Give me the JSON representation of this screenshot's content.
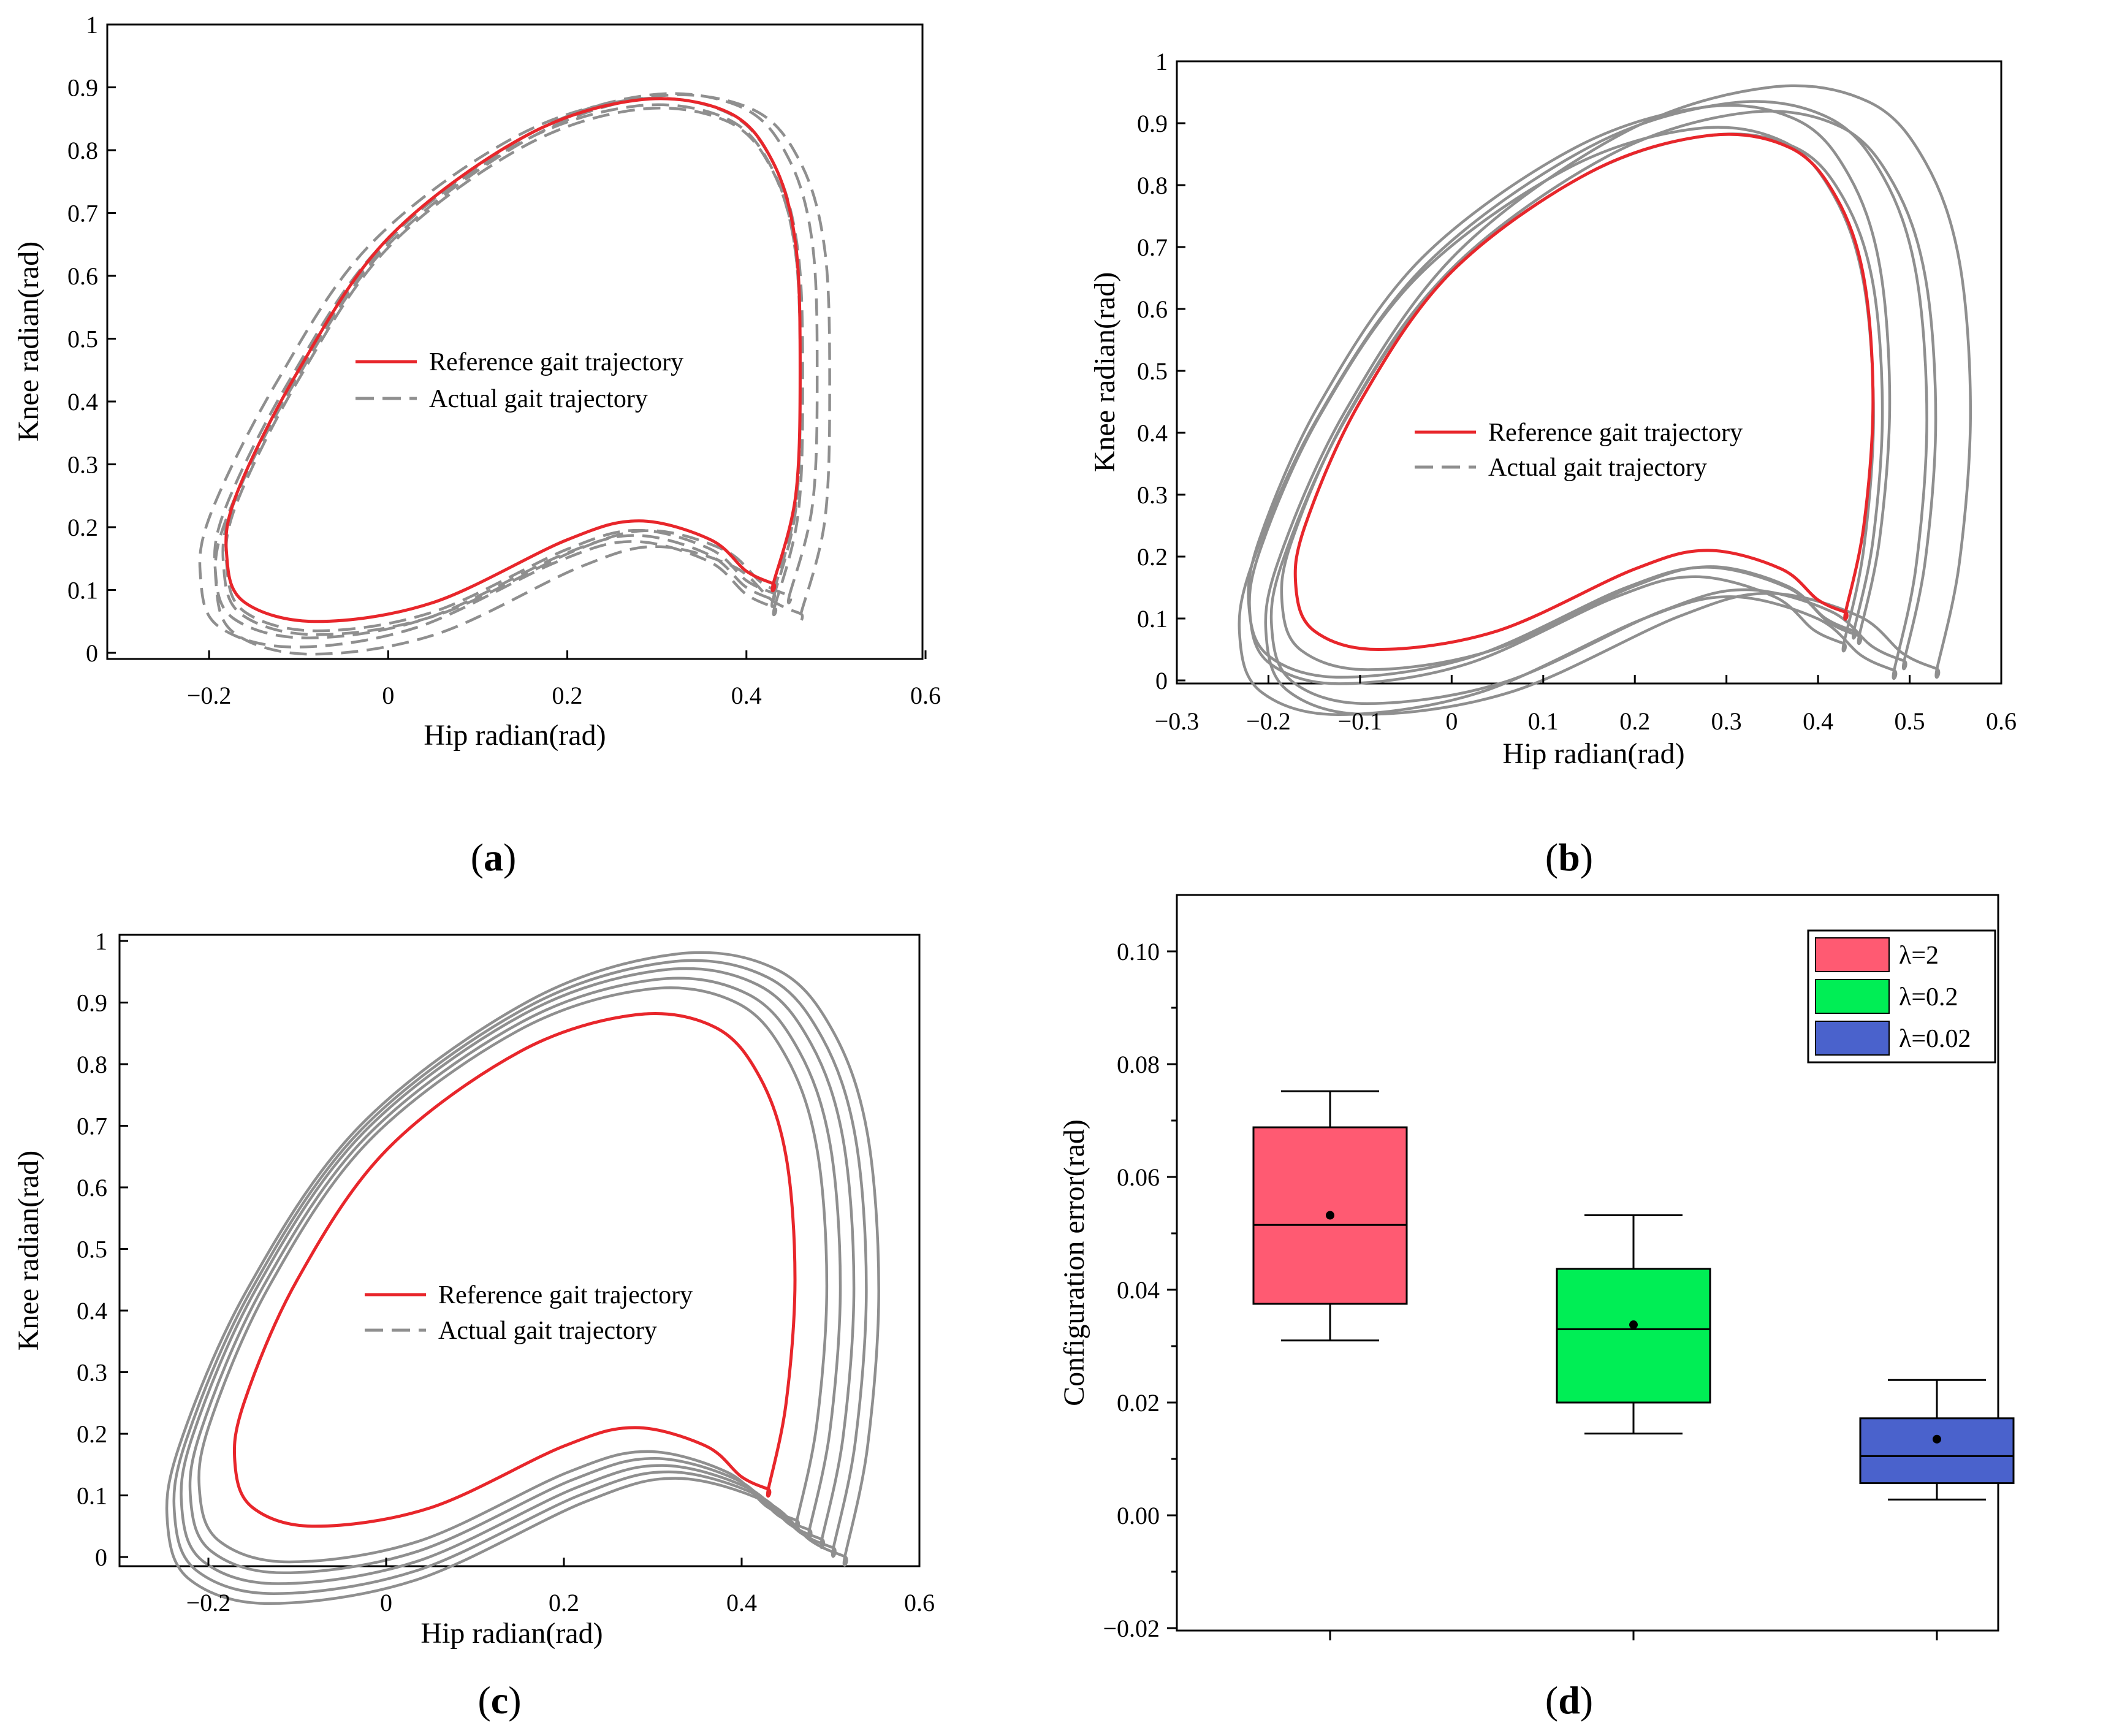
{
  "panels": [
    {
      "label_open": "(",
      "label_letter": "a",
      "label_close": ")",
      "legend": [
        "Reference gait trajectory",
        "Actual gait trajectory"
      ],
      "xlabel": "Hip radian(rad)",
      "ylabel": "Knee radian(rad)",
      "xticks": [
        "−0.2",
        "0",
        "0.2",
        "0.4",
        "0.6"
      ],
      "yticks": [
        "0",
        "0.1",
        "0.2",
        "0.3",
        "0.4",
        "0.5",
        "0.6",
        "0.7",
        "0.8",
        "0.9",
        "1"
      ]
    },
    {
      "label_open": "(",
      "label_letter": "b",
      "label_close": ")",
      "legend": [
        "Reference gait trajectory",
        "Actual gait trajectory"
      ],
      "xlabel": "Hip radian(rad)",
      "ylabel": "Knee radian(rad)",
      "xticks": [
        "−0.3",
        "−0.2",
        "−0.1",
        "0",
        "0.1",
        "0.2",
        "0.3",
        "0.4",
        "0.5",
        "0.6"
      ],
      "yticks": [
        "0",
        "0.1",
        "0.2",
        "0.3",
        "0.4",
        "0.5",
        "0.6",
        "0.7",
        "0.8",
        "0.9",
        "1"
      ]
    },
    {
      "label_open": "(",
      "label_letter": "c",
      "label_close": ")",
      "legend": [
        "Reference gait trajectory",
        "Actual gait trajectory"
      ],
      "xlabel": "Hip radian(rad)",
      "ylabel": "Knee radian(rad)",
      "xticks": [
        "−0.2",
        "0",
        "0.2",
        "0.4",
        "0.6"
      ],
      "yticks": [
        "0",
        "0.1",
        "0.2",
        "0.3",
        "0.4",
        "0.5",
        "0.6",
        "0.7",
        "0.8",
        "0.9",
        "1"
      ]
    },
    {
      "label_open": "(",
      "label_letter": "d",
      "label_close": ")",
      "legend": [
        "λ=2",
        "λ=0.2",
        "λ=0.02"
      ],
      "ylabel": "Configuration error(rad)",
      "yticks": [
        "−0.02",
        "0.00",
        "0.02",
        "0.04",
        "0.06",
        "0.08",
        "0.10"
      ]
    }
  ],
  "chart_data": [
    {
      "type": "line",
      "panel": "a",
      "xlim": [
        -0.3,
        0.6
      ],
      "ylim": [
        0,
        1
      ],
      "reference_color": "#e8262b",
      "actual_color": "#8f8f8f",
      "reference": {
        "x": [
          0.43,
          0.455,
          0.46,
          0.455,
          0.43,
          0.38,
          0.28,
          0.15,
          0.0,
          -0.1,
          -0.17,
          -0.18,
          -0.16,
          -0.08,
          0.05,
          0.2,
          0.28,
          0.36,
          0.4,
          0.43
        ],
        "y": [
          0.11,
          0.25,
          0.45,
          0.65,
          0.78,
          0.86,
          0.88,
          0.82,
          0.66,
          0.45,
          0.25,
          0.15,
          0.08,
          0.05,
          0.08,
          0.18,
          0.21,
          0.18,
          0.13,
          0.11
        ]
      },
      "actual": {
        "style": "dashed",
        "loops": [
          {
            "dx": 0.0,
            "dy": -0.015,
            "s": 1.0
          },
          {
            "dx": -0.005,
            "dy": -0.02,
            "s": 1.02
          },
          {
            "dx": 0.01,
            "dy": -0.01,
            "s": 1.035
          },
          {
            "dx": -0.01,
            "dy": -0.025,
            "s": 1.05
          },
          {
            "dx": 0.015,
            "dy": -0.03,
            "s": 1.07
          }
        ]
      }
    },
    {
      "type": "line",
      "panel": "b",
      "xlim": [
        -0.3,
        0.6
      ],
      "ylim": [
        0,
        1
      ],
      "reference_color": "#e8262b",
      "actual_color": "#8f8f8f",
      "reference": {
        "x": [
          0.43,
          0.45,
          0.46,
          0.45,
          0.42,
          0.37,
          0.28,
          0.15,
          0.0,
          -0.1,
          -0.16,
          -0.17,
          -0.15,
          -0.08,
          0.05,
          0.2,
          0.28,
          0.36,
          0.4,
          0.43
        ],
        "y": [
          0.11,
          0.25,
          0.45,
          0.65,
          0.78,
          0.86,
          0.88,
          0.82,
          0.66,
          0.45,
          0.25,
          0.15,
          0.08,
          0.05,
          0.08,
          0.18,
          0.21,
          0.18,
          0.13,
          0.11
        ]
      },
      "actual": {
        "style": "solid",
        "loops": [
          {
            "dx": 0.0,
            "dy": -0.02,
            "s": 1.04
          },
          {
            "dx": -0.02,
            "dy": -0.03,
            "s": 1.08
          },
          {
            "dx": -0.01,
            "dy": -0.01,
            "s": 1.11
          },
          {
            "dx": 0.03,
            "dy": -0.04,
            "s": 1.15
          },
          {
            "dx": 0.01,
            "dy": -0.045,
            "s": 1.19
          },
          {
            "dx": 0.05,
            "dy": -0.035,
            "s": 1.22
          }
        ]
      }
    },
    {
      "type": "line",
      "panel": "c",
      "xlim": [
        -0.3,
        0.6
      ],
      "ylim": [
        0,
        1
      ],
      "reference_color": "#e8262b",
      "actual_color": "#8f8f8f",
      "reference": {
        "x": [
          0.43,
          0.45,
          0.46,
          0.45,
          0.42,
          0.37,
          0.28,
          0.15,
          0.0,
          -0.1,
          -0.16,
          -0.17,
          -0.15,
          -0.08,
          0.05,
          0.2,
          0.28,
          0.36,
          0.4,
          0.43
        ],
        "y": [
          0.11,
          0.25,
          0.45,
          0.65,
          0.78,
          0.86,
          0.88,
          0.82,
          0.66,
          0.45,
          0.25,
          0.15,
          0.08,
          0.05,
          0.08,
          0.18,
          0.21,
          0.18,
          0.13,
          0.11
        ]
      },
      "actual": {
        "style": "solid",
        "loops": [
          {
            "dx": 0.005,
            "dy": -0.02,
            "s": 1.12
          },
          {
            "dx": 0.01,
            "dy": -0.025,
            "s": 1.16
          },
          {
            "dx": 0.015,
            "dy": -0.03,
            "s": 1.2
          },
          {
            "dx": 0.02,
            "dy": -0.035,
            "s": 1.235
          },
          {
            "dx": 0.025,
            "dy": -0.04,
            "s": 1.27
          }
        ]
      }
    },
    {
      "type": "box",
      "panel": "d",
      "ylim": [
        -0.02,
        0.11
      ],
      "ylabel": "Configuration error(rad)",
      "series": [
        {
          "name": "λ=2",
          "color": "#ff5a72",
          "whisker_low": 0.031,
          "q1": 0.0375,
          "median": 0.0515,
          "q3": 0.0688,
          "whisker_high": 0.0752,
          "mean": 0.0532
        },
        {
          "name": "λ=0.2",
          "color": "#00ee55",
          "whisker_low": 0.0145,
          "q1": 0.02,
          "median": 0.033,
          "q3": 0.0437,
          "whisker_high": 0.0532,
          "mean": 0.0338
        },
        {
          "name": "λ=0.02",
          "color": "#4a62cc",
          "whisker_low": 0.0028,
          "q1": 0.0057,
          "median": 0.0105,
          "q3": 0.0172,
          "whisker_high": 0.024,
          "mean": 0.0135
        }
      ],
      "legend_position": "top-right"
    }
  ]
}
